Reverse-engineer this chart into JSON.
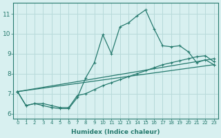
{
  "xlabel": "Humidex (Indice chaleur)",
  "background_color": "#d8f0f0",
  "grid_color": "#b8dada",
  "line_color": "#267a6e",
  "xlim": [
    -0.5,
    23.5
  ],
  "ylim": [
    5.75,
    11.55
  ],
  "xticks": [
    0,
    1,
    2,
    3,
    4,
    5,
    6,
    7,
    8,
    9,
    10,
    11,
    12,
    13,
    14,
    15,
    16,
    17,
    18,
    19,
    20,
    21,
    22,
    23
  ],
  "yticks": [
    6,
    7,
    8,
    9,
    10,
    11
  ],
  "line1_x": [
    0,
    1,
    2,
    3,
    4,
    5,
    6,
    7,
    8,
    9,
    10,
    11,
    12,
    13,
    14,
    15,
    16,
    17,
    18,
    19,
    20,
    21,
    22,
    23
  ],
  "line1_y": [
    7.1,
    6.4,
    6.5,
    6.4,
    6.3,
    6.25,
    6.25,
    6.8,
    7.8,
    8.55,
    9.95,
    9.0,
    10.35,
    10.55,
    10.9,
    11.2,
    10.25,
    9.4,
    9.35,
    9.4,
    9.1,
    8.55,
    8.7,
    8.45
  ],
  "line2_x": [
    0,
    1,
    2,
    3,
    4,
    5,
    6,
    7,
    8,
    9,
    10,
    11,
    12,
    13,
    14,
    15,
    16,
    17,
    18,
    19,
    20,
    21,
    22,
    23
  ],
  "line2_y": [
    7.1,
    6.4,
    6.5,
    6.5,
    6.4,
    6.3,
    6.3,
    6.9,
    7.0,
    7.2,
    7.4,
    7.55,
    7.7,
    7.85,
    8.0,
    8.15,
    8.3,
    8.45,
    8.55,
    8.65,
    8.75,
    8.85,
    8.9,
    8.6
  ],
  "line3_x": [
    0,
    23
  ],
  "line3_y": [
    7.1,
    8.75
  ],
  "line4_x": [
    0,
    23
  ],
  "line4_y": [
    7.1,
    8.45
  ],
  "xlabel_fontsize": 6.5,
  "tick_fontsize_x": 5.0,
  "tick_fontsize_y": 6.5
}
